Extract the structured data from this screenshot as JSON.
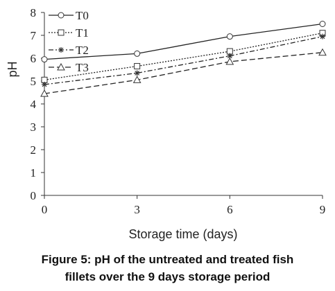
{
  "chart_data": {
    "type": "line",
    "title": "",
    "xlabel": "Storage time (days)",
    "ylabel": "pH",
    "x": [
      0,
      3,
      6,
      9
    ],
    "x_ticks": [
      "0",
      "3",
      "6",
      "9"
    ],
    "xlim": [
      0,
      9
    ],
    "y_ticks": [
      "0",
      "1",
      "2",
      "3",
      "4",
      "5",
      "6",
      "7",
      "8"
    ],
    "ylim": [
      0,
      8
    ],
    "grid": false,
    "legend_position": "top-left",
    "series": [
      {
        "name": "T0",
        "marker": "circle",
        "dash": "solid",
        "values": [
          5.95,
          6.2,
          6.95,
          7.5
        ]
      },
      {
        "name": "T1",
        "marker": "square",
        "dash": "dotted",
        "values": [
          5.05,
          5.65,
          6.3,
          7.1
        ]
      },
      {
        "name": "T2",
        "marker": "star",
        "dash": "dashdot",
        "values": [
          4.85,
          5.35,
          6.1,
          6.95
        ]
      },
      {
        "name": "T3",
        "marker": "triangle",
        "dash": "dashed",
        "values": [
          4.45,
          5.05,
          5.85,
          6.25
        ]
      }
    ]
  },
  "caption": {
    "line1": "Figure 5: pH of the untreated and treated fish",
    "line2": "fillets over the 9 days storage period"
  }
}
